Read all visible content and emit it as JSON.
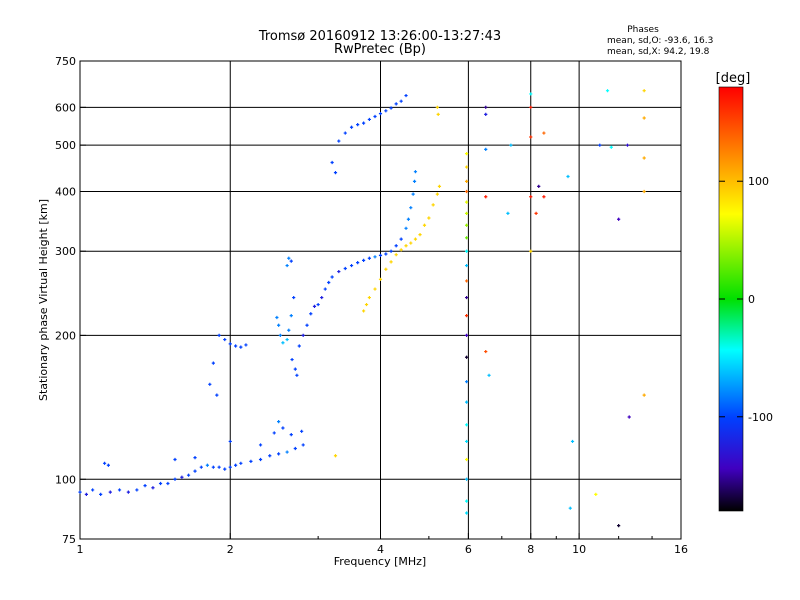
{
  "chart_data": {
    "type": "scatter",
    "title": "Tromsø 20160912 13:26:00-13:27:43",
    "subtitle": "RwPretec (Bp)",
    "xlabel": "Frequency [MHz]",
    "ylabel": "Stationary phase Virtual Height [km]",
    "x_scale": "log",
    "y_scale": "log",
    "xlim": [
      1,
      16
    ],
    "ylim": [
      75,
      750
    ],
    "x_ticks": [
      1,
      2,
      4,
      6,
      8,
      10,
      16
    ],
    "x_grid": [
      2,
      4,
      6,
      8,
      10
    ],
    "y_ticks": [
      75,
      100,
      200,
      300,
      400,
      500,
      600,
      750
    ],
    "y_grid": [
      100,
      200,
      300,
      400,
      500,
      600
    ],
    "grid": true,
    "phases_box": {
      "title": "Phases",
      "line_o": "mean, sd,O: -93.6, 16.3",
      "line_x": "mean, sd,X:  94.2, 19.8"
    },
    "colorbar": {
      "label": "[deg]",
      "range": [
        -180,
        180
      ],
      "ticks": [
        100,
        0,
        -100
      ],
      "tick_labels": [
        "100",
        "0",
        "-100"
      ],
      "colors": [
        "#ff0000",
        "#ff8000",
        "#ffff00",
        "#00e000",
        "#00ffff",
        "#0040ff",
        "#4000c0",
        "#000000"
      ]
    },
    "series": [
      {
        "colors": {
          "-100": "#2233ff",
          "-120": "#3300bb",
          "-80": "#1a6dff",
          "-140": "#220088"
        },
        "points": [
          [
            1.0,
            94,
            -100
          ],
          [
            1.03,
            93,
            -120
          ],
          [
            1.06,
            95,
            -100
          ],
          [
            1.1,
            93,
            -100
          ],
          [
            1.15,
            94,
            -120
          ],
          [
            1.2,
            95,
            -100
          ],
          [
            1.25,
            94,
            -120
          ],
          [
            1.3,
            95,
            -100
          ],
          [
            1.35,
            97,
            -100
          ],
          [
            1.4,
            96,
            -120
          ],
          [
            1.45,
            98,
            -100
          ],
          [
            1.5,
            98,
            -100
          ],
          [
            1.55,
            100,
            -100
          ],
          [
            1.6,
            101,
            -120
          ],
          [
            1.65,
            102,
            -100
          ],
          [
            1.7,
            104,
            -100
          ],
          [
            1.75,
            106,
            -100
          ],
          [
            1.8,
            107,
            -80
          ],
          [
            1.85,
            106,
            -100
          ],
          [
            1.9,
            106,
            -100
          ],
          [
            1.95,
            105,
            -100
          ],
          [
            2.0,
            106,
            -100
          ],
          [
            2.05,
            107,
            -100
          ],
          [
            2.1,
            108,
            -100
          ],
          [
            2.2,
            109,
            -100
          ],
          [
            2.3,
            110,
            -100
          ],
          [
            2.4,
            112,
            -100
          ],
          [
            2.5,
            113,
            -100
          ],
          [
            2.6,
            114,
            -80
          ],
          [
            2.7,
            116,
            -100
          ],
          [
            2.8,
            118,
            -100
          ],
          [
            1.12,
            108,
            -100
          ],
          [
            1.14,
            107,
            -100
          ],
          [
            1.55,
            110,
            -100
          ],
          [
            1.7,
            111,
            -100
          ],
          [
            2.0,
            120,
            -100
          ],
          [
            2.3,
            118,
            -100
          ],
          [
            2.45,
            125,
            -100
          ],
          [
            2.5,
            132,
            -80
          ],
          [
            2.55,
            128,
            -100
          ],
          [
            2.65,
            124,
            -100
          ],
          [
            2.78,
            126,
            -100
          ]
        ]
      },
      {
        "points": [
          [
            1.9,
            200,
            -100
          ],
          [
            1.95,
            196,
            -100
          ],
          [
            2.0,
            192,
            -100
          ],
          [
            2.05,
            190,
            -100
          ],
          [
            2.1,
            189,
            -100
          ],
          [
            2.15,
            191,
            -100
          ],
          [
            1.85,
            175,
            -100
          ],
          [
            1.82,
            158,
            -100
          ],
          [
            1.88,
            150,
            -100
          ]
        ]
      },
      {
        "points": [
          [
            2.48,
            218,
            -80
          ],
          [
            2.5,
            210,
            -80
          ],
          [
            2.52,
            200,
            -80
          ],
          [
            2.55,
            193,
            -60
          ],
          [
            2.6,
            196,
            -60
          ],
          [
            2.62,
            205,
            -80
          ],
          [
            2.65,
            220,
            -80
          ],
          [
            2.68,
            240,
            -100
          ],
          [
            2.6,
            280,
            -80
          ],
          [
            2.62,
            290,
            -80
          ],
          [
            2.65,
            286,
            -100
          ],
          [
            2.66,
            178,
            -100
          ],
          [
            2.7,
            170,
            -100
          ],
          [
            2.72,
            165,
            -100
          ],
          [
            2.75,
            190,
            -100
          ],
          [
            2.8,
            200,
            -120
          ],
          [
            2.85,
            210,
            -100
          ],
          [
            2.9,
            222,
            -100
          ],
          [
            2.95,
            230,
            -120
          ],
          [
            3.0,
            232,
            -100
          ],
          [
            3.05,
            240,
            -120
          ],
          [
            3.1,
            250,
            -100
          ],
          [
            3.15,
            258,
            -100
          ],
          [
            3.2,
            265,
            -100
          ],
          [
            3.3,
            272,
            -120
          ],
          [
            3.4,
            276,
            -100
          ],
          [
            3.5,
            280,
            -100
          ],
          [
            3.6,
            284,
            -100
          ],
          [
            3.7,
            287,
            -100
          ],
          [
            3.8,
            290,
            -100
          ],
          [
            3.9,
            292,
            -80
          ],
          [
            4.0,
            294,
            -100
          ],
          [
            4.1,
            296,
            -100
          ],
          [
            4.2,
            300,
            -100
          ],
          [
            4.3,
            308,
            -100
          ],
          [
            4.4,
            318,
            -100
          ],
          [
            4.5,
            335,
            -80
          ],
          [
            4.55,
            350,
            -80
          ],
          [
            4.6,
            370,
            -80
          ],
          [
            4.65,
            395,
            -80
          ],
          [
            4.68,
            420,
            -80
          ],
          [
            4.7,
            440,
            -80
          ]
        ]
      },
      {
        "points": [
          [
            3.3,
            510,
            -100
          ],
          [
            3.4,
            530,
            -100
          ],
          [
            3.5,
            545,
            -100
          ],
          [
            3.6,
            552,
            -100
          ],
          [
            3.7,
            556,
            -100
          ],
          [
            3.8,
            566,
            -100
          ],
          [
            3.9,
            574,
            -100
          ],
          [
            4.0,
            582,
            -100
          ],
          [
            4.1,
            590,
            -100
          ],
          [
            4.2,
            598,
            -100
          ],
          [
            4.3,
            610,
            -100
          ],
          [
            4.4,
            618,
            -100
          ],
          [
            4.5,
            635,
            -100
          ],
          [
            3.2,
            460,
            -100
          ],
          [
            3.25,
            438,
            -100
          ]
        ]
      },
      {
        "points": [
          [
            3.7,
            225,
            110
          ],
          [
            3.75,
            232,
            110
          ],
          [
            3.8,
            240,
            110
          ],
          [
            3.9,
            250,
            110
          ],
          [
            4.0,
            262,
            110
          ],
          [
            4.1,
            275,
            110
          ],
          [
            4.2,
            285,
            110
          ],
          [
            4.3,
            295,
            110
          ],
          [
            4.4,
            302,
            110
          ],
          [
            4.5,
            308,
            110
          ],
          [
            4.6,
            312,
            110
          ],
          [
            4.7,
            318,
            110
          ],
          [
            4.8,
            325,
            110
          ],
          [
            4.9,
            340,
            110
          ],
          [
            5.0,
            352,
            110
          ],
          [
            5.1,
            375,
            110
          ],
          [
            5.2,
            395,
            110
          ],
          [
            5.25,
            410,
            110
          ],
          [
            3.25,
            112,
            110
          ],
          [
            5.2,
            600,
            110
          ],
          [
            5.22,
            580,
            110
          ]
        ]
      },
      {
        "points": [
          [
            5.95,
            480,
            100
          ],
          [
            5.95,
            450,
            110
          ],
          [
            5.95,
            420,
            120
          ],
          [
            5.95,
            400,
            140
          ],
          [
            5.95,
            380,
            90
          ],
          [
            5.95,
            360,
            80
          ],
          [
            5.95,
            340,
            60
          ],
          [
            5.95,
            320,
            40
          ],
          [
            5.95,
            300,
            -40
          ],
          [
            5.95,
            280,
            -60
          ],
          [
            5.95,
            260,
            140
          ],
          [
            5.95,
            240,
            -150
          ],
          [
            5.95,
            220,
            160
          ],
          [
            5.95,
            200,
            -140
          ],
          [
            5.95,
            180,
            -170
          ],
          [
            5.95,
            160,
            -80
          ],
          [
            5.95,
            145,
            -60
          ],
          [
            5.95,
            130,
            -40
          ],
          [
            5.95,
            120,
            -50
          ],
          [
            5.95,
            110,
            100
          ],
          [
            5.95,
            100,
            -60
          ],
          [
            5.95,
            90,
            -40
          ],
          [
            5.95,
            85,
            -50
          ]
        ]
      },
      {
        "points": [
          [
            6.5,
            600,
            -150
          ],
          [
            6.5,
            580,
            -120
          ],
          [
            6.5,
            490,
            -80
          ],
          [
            6.5,
            390,
            170
          ],
          [
            6.5,
            185,
            150
          ],
          [
            6.6,
            165,
            -60
          ],
          [
            7.2,
            360,
            -60
          ],
          [
            7.3,
            500,
            -60
          ],
          [
            8.0,
            640,
            -40
          ],
          [
            8.0,
            600,
            170
          ],
          [
            8.0,
            520,
            160
          ],
          [
            8.0,
            390,
            170
          ],
          [
            8.0,
            300,
            110
          ],
          [
            8.2,
            360,
            160
          ],
          [
            8.3,
            410,
            -150
          ],
          [
            8.5,
            530,
            140
          ],
          [
            8.5,
            390,
            170
          ],
          [
            9.5,
            430,
            -60
          ],
          [
            9.7,
            120,
            -60
          ],
          [
            9.6,
            87,
            -60
          ],
          [
            11.0,
            500,
            -100
          ],
          [
            11.4,
            650,
            -40
          ],
          [
            11.6,
            495,
            -40
          ],
          [
            12.0,
            350,
            -140
          ],
          [
            12.0,
            80,
            -170
          ],
          [
            12.5,
            500,
            -130
          ],
          [
            12.6,
            135,
            -140
          ],
          [
            13.5,
            650,
            110
          ],
          [
            13.5,
            570,
            120
          ],
          [
            13.5,
            470,
            120
          ],
          [
            13.5,
            400,
            120
          ],
          [
            13.5,
            150,
            120
          ],
          [
            10.8,
            93,
            100
          ]
        ]
      }
    ]
  }
}
